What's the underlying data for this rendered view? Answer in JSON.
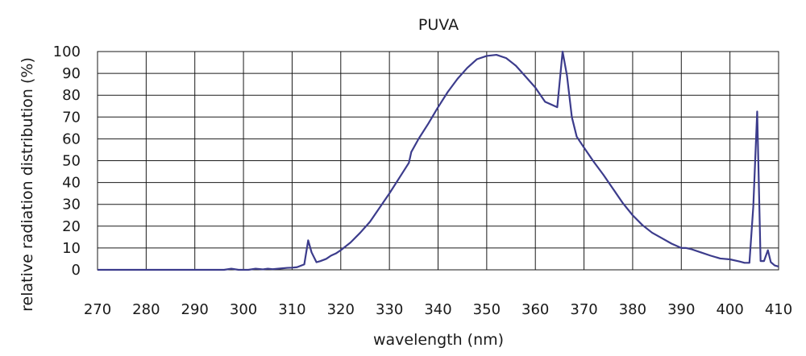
{
  "chart_data": {
    "type": "line",
    "title": "PUVA",
    "xlabel": "wavelength (nm)",
    "ylabel": "relative radiation distribution (%)",
    "xlim": [
      270,
      410
    ],
    "ylim": [
      0,
      100
    ],
    "xticks": [
      "270",
      "280",
      "290",
      "300",
      "310",
      "320",
      "330",
      "340",
      "350",
      "360",
      "370",
      "380",
      "390",
      "400",
      "410"
    ],
    "yticks": [
      "0",
      "10",
      "20",
      "30",
      "40",
      "50",
      "60",
      "70",
      "80",
      "90",
      "100"
    ],
    "grid": true,
    "legend": "none",
    "line_color": "#3c3c8c",
    "series": [
      {
        "x": [
          270,
          280,
          290,
          296,
          297.5,
          299,
          300,
          301,
          302.5,
          304,
          305,
          306,
          308,
          309,
          310,
          311,
          312.5,
          313.3,
          314,
          315,
          315.8,
          317,
          318,
          319,
          320,
          322,
          324,
          326,
          328,
          330,
          332,
          334,
          334.5,
          336,
          338,
          340,
          342,
          344,
          346,
          348,
          350,
          352,
          354,
          356,
          358,
          360,
          362,
          364.5,
          365.6,
          366.5,
          367.5,
          368.5,
          370,
          372,
          374,
          376,
          378,
          380,
          382,
          384,
          386,
          388,
          390,
          391,
          392,
          394,
          396,
          398,
          400,
          402,
          403,
          404,
          404.8,
          405.6,
          406.3,
          407,
          407.8,
          408.4,
          409.2,
          410
        ],
        "y": [
          0,
          0,
          0,
          0,
          0.5,
          0,
          0,
          0,
          0.5,
          0.2,
          0.5,
          0.3,
          0.7,
          0.9,
          1,
          1.2,
          2.5,
          13.5,
          8,
          3.5,
          4,
          5,
          6.5,
          7.5,
          9,
          12.5,
          17,
          22,
          28.5,
          35,
          42,
          49,
          54,
          60,
          67,
          74.5,
          81.5,
          87.5,
          92.5,
          96.5,
          98,
          98.5,
          97,
          93.5,
          88.5,
          83.5,
          77,
          74.5,
          100,
          89,
          70,
          61,
          56,
          49.5,
          43.5,
          37,
          30.5,
          25,
          20.5,
          17,
          14.5,
          12,
          10,
          10,
          9.5,
          8,
          6.5,
          5.2,
          4.8,
          3.8,
          3.2,
          3.2,
          29,
          72.5,
          4,
          4,
          9,
          3.5,
          2,
          1.5
        ]
      }
    ]
  }
}
